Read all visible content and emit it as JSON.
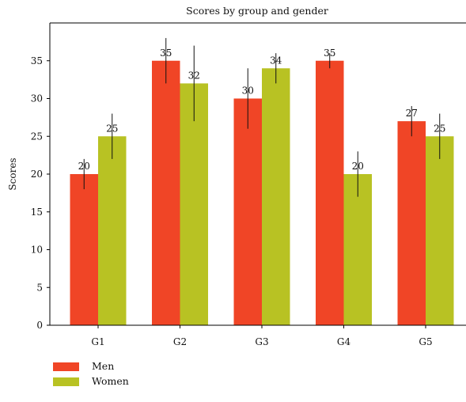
{
  "chart_data": {
    "type": "bar",
    "title": "Scores by group and gender",
    "xlabel": "",
    "ylabel": "Scores",
    "categories": [
      "G1",
      "G2",
      "G3",
      "G4",
      "G5"
    ],
    "series": [
      {
        "name": "Men",
        "color": "#f04526",
        "values": [
          20,
          35,
          30,
          35,
          27
        ],
        "errors": [
          2,
          3,
          4,
          1,
          2
        ]
      },
      {
        "name": "Women",
        "color": "#b8c223",
        "values": [
          25,
          32,
          34,
          20,
          25
        ],
        "errors": [
          3,
          5,
          2,
          3,
          3
        ]
      }
    ],
    "ylim": [
      0,
      40
    ],
    "yticks": [
      0,
      5,
      10,
      15,
      20,
      25,
      30,
      35
    ],
    "grid": false,
    "legend": "bottom-left"
  }
}
